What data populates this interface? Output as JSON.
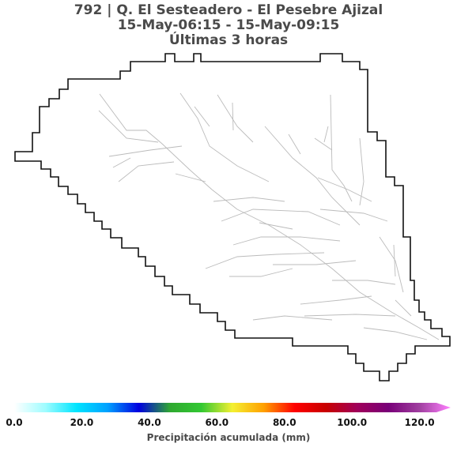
{
  "title": {
    "line1": "792 | Q. El Sesteadero - El Pesebre Ajizal",
    "line2": "15-May-06:15 - 15-May-09:15",
    "line3": "Últimas 3 horas"
  },
  "colorbar": {
    "label": "Precipitación acumulada (mm)",
    "min": 0,
    "max": 125,
    "ticks": [
      {
        "value": 0,
        "label": "0.0"
      },
      {
        "value": 20,
        "label": "20.0"
      },
      {
        "value": 40,
        "label": "40.0"
      },
      {
        "value": 60,
        "label": "60.0"
      },
      {
        "value": 80,
        "label": "80.0"
      },
      {
        "value": 100,
        "label": "100.0"
      },
      {
        "value": 120,
        "label": "120.0"
      }
    ],
    "colors": [
      "#ffffff",
      "#9ffcff",
      "#00e5ff",
      "#00a0ff",
      "#0000e0",
      "#2fa830",
      "#32c832",
      "#f4f032",
      "#ffa000",
      "#ff0000",
      "#c80000",
      "#a0005a",
      "#780078",
      "#a040a0",
      "#ff80ff"
    ],
    "extend": "max"
  },
  "map": {
    "basin_outline_color": "#111111",
    "stream_color": "#bbbbbb"
  }
}
